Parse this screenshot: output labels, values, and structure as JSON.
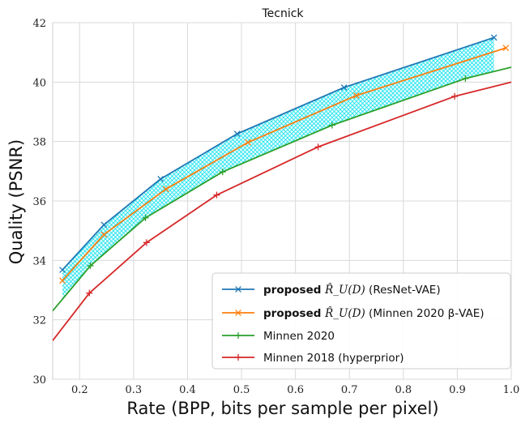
{
  "chart_data": {
    "type": "line",
    "title": "Tecnick",
    "xlabel": "Rate (BPP, bits per sample per pixel)",
    "ylabel": "Quality (PSNR)",
    "xlim": [
      0.15,
      1.0
    ],
    "ylim": [
      30,
      42
    ],
    "xticks": [
      0.2,
      0.3,
      0.4,
      0.5,
      0.6,
      0.7,
      0.8,
      0.9,
      1.0
    ],
    "xtick_labels": [
      "0.2",
      "0.3",
      "0.4",
      "0.5",
      "0.6",
      "0.7",
      "0.8",
      "0.9",
      "1.0"
    ],
    "yticks": [
      30,
      32,
      34,
      36,
      38,
      40,
      42
    ],
    "ytick_labels": [
      "30",
      "32",
      "34",
      "36",
      "38",
      "40",
      "42"
    ],
    "grid": true,
    "legend_position": "bottom-right",
    "shaded_region": {
      "between": [
        "proposed_resnet",
        "minnen2020"
      ],
      "color": "#00e5ee",
      "pattern": "crosshatch"
    },
    "series": [
      {
        "id": "proposed_resnet",
        "name": "proposed",
        "name_math": "R̂_U(D)",
        "name_suffix": "(ResNet-VAE)",
        "color": "#1f77b4",
        "marker": "x",
        "x": [
          0.168,
          0.245,
          0.35,
          0.492,
          0.69,
          0.968
        ],
        "y": [
          33.68,
          35.2,
          36.74,
          38.26,
          39.82,
          41.5
        ]
      },
      {
        "id": "proposed_minnen",
        "name": "proposed",
        "name_math": "R̂_U(D)",
        "name_suffix": "(Minnen 2020 β-VAE)",
        "color": "#ff7f0e",
        "marker": "x",
        "x": [
          0.168,
          0.245,
          0.36,
          0.512,
          0.713,
          0.99
        ],
        "y": [
          33.32,
          34.87,
          36.4,
          37.97,
          39.55,
          41.15
        ]
      },
      {
        "id": "minnen2020",
        "name": "Minnen 2020",
        "color": "#2ca02c",
        "marker": "+",
        "x": [
          0.15,
          0.22,
          0.322,
          0.465,
          0.668,
          0.915,
          1.0
        ],
        "y": [
          32.3,
          33.82,
          35.43,
          36.98,
          38.55,
          40.12,
          40.5
        ]
      },
      {
        "id": "minnen2018",
        "name": "Minnen 2018 (hyperprior)",
        "color": "#d62728",
        "marker": "+",
        "x": [
          0.15,
          0.218,
          0.324,
          0.454,
          0.642,
          0.895,
          1.0
        ],
        "y": [
          31.3,
          32.9,
          34.6,
          36.2,
          37.82,
          39.52,
          40.0
        ]
      }
    ]
  }
}
